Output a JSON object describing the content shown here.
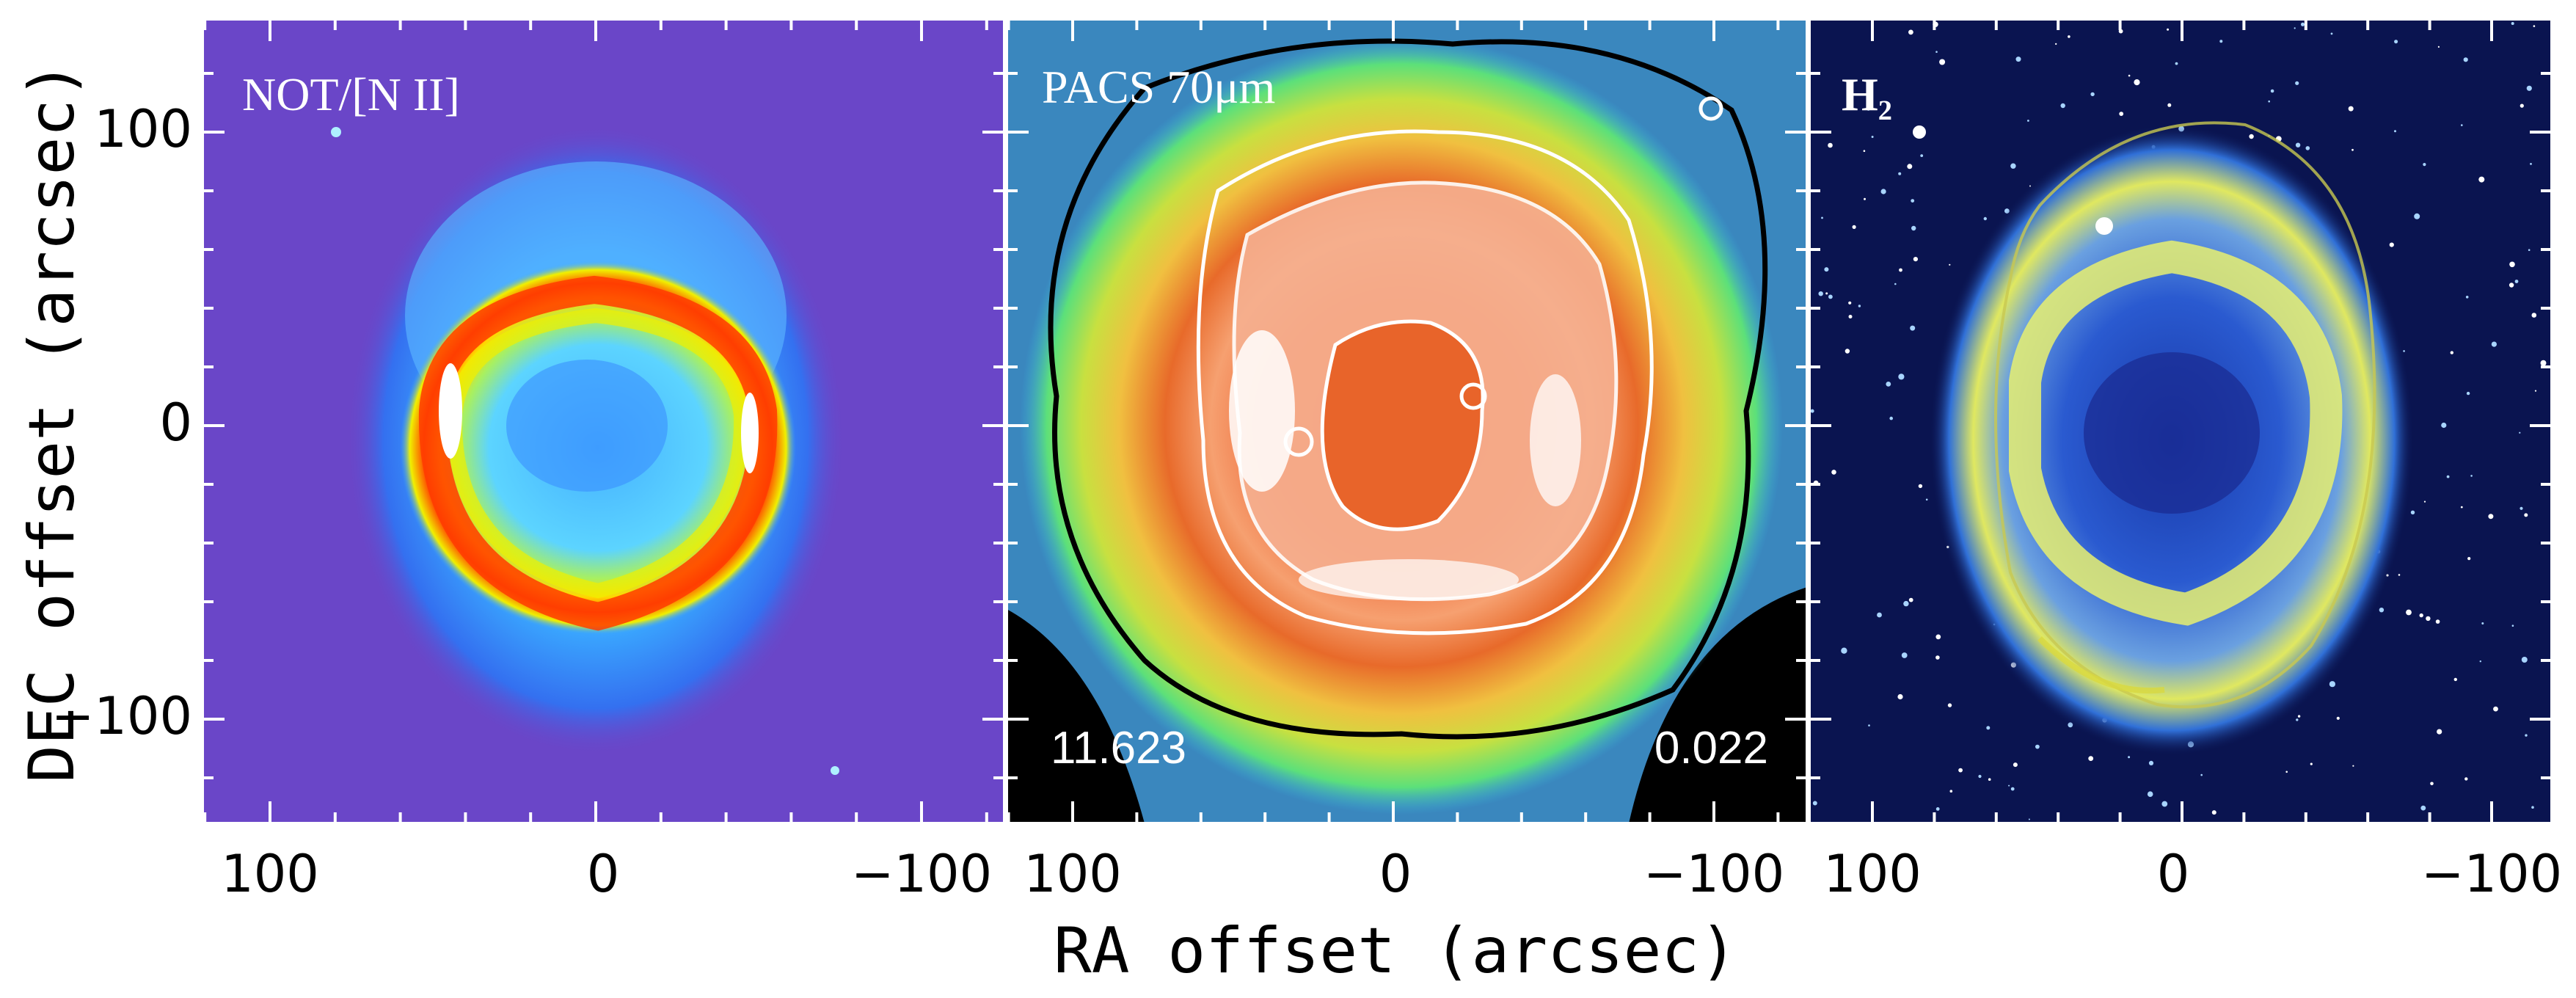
{
  "figure": {
    "x_axis_title": "RA offset (arcsec)",
    "y_axis_title": "DEC offset (arcsec)",
    "x_ticks": [
      "100",
      "0",
      "−100"
    ],
    "y_ticks": [
      "100",
      "0",
      "−100"
    ],
    "panels": [
      {
        "label": "NOT/[N II]",
        "background": "#6a46c8"
      },
      {
        "label": "PACS 70μm",
        "value_left": "11.623",
        "value_right": "0.022",
        "background": "#2a6ea8"
      },
      {
        "label": "H₂",
        "background": "#0a1450"
      }
    ],
    "colors": {
      "ring_red": "#ff3c00",
      "ring_yellow": "#f0f000",
      "halo_cyan": "#40d8ff",
      "halo_blue": "#2f8cff",
      "pacs_core": "#e85a28",
      "contour_white": "#ffffff",
      "contour_black": "#000000"
    }
  }
}
